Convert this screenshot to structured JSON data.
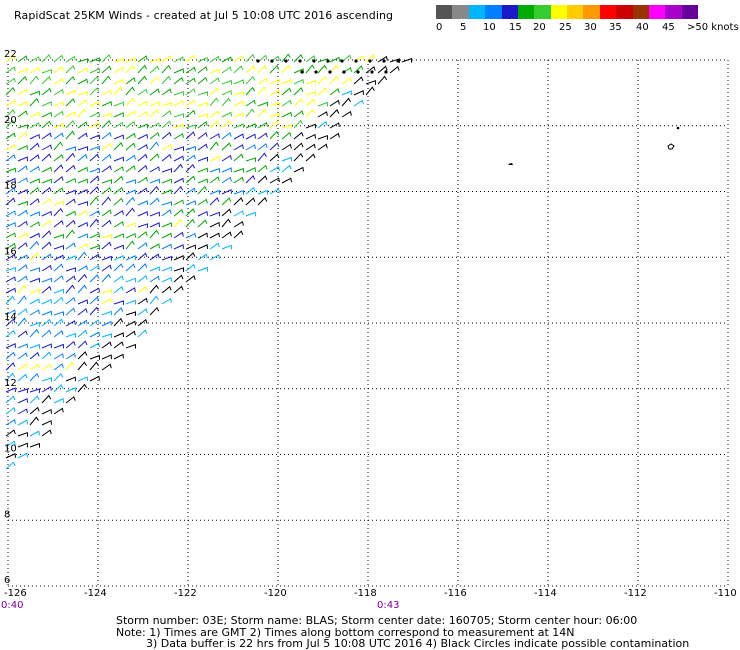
{
  "title": "RapidScat 25KM Winds - created at Jul  5 10:08 UTC 2016 ascending",
  "legend": {
    "colors": [
      "#555555",
      "#888888",
      "#00b4ff",
      "#0080ff",
      "#1a1acc",
      "#00aa00",
      "#33cc33",
      "#ffff00",
      "#ffcc00",
      "#ff9900",
      "#ff0000",
      "#cc0000",
      "#993300",
      "#ff00ff",
      "#aa00cc",
      "#660099"
    ],
    "labels": [
      "0",
      "5",
      "10",
      "15",
      "20",
      "25",
      "30",
      "35",
      "40",
      "45",
      ">50 knots"
    ]
  },
  "map": {
    "lat_labels": [
      "22",
      "20",
      "18",
      "16",
      "14",
      "12",
      "10",
      "8",
      "6"
    ],
    "lon_labels": [
      "-126",
      "-124",
      "-122",
      "-120",
      "-118",
      "-116",
      "-114",
      "-112",
      "-110"
    ],
    "time_left": "0:40",
    "time_mid": "0:43",
    "storm_marker_colors": [
      "#000000"
    ]
  },
  "footer": {
    "line1": "Storm number: 03E;  Storm name: BLAS;  Storm center date: 160705;  Storm center hour: 06:00",
    "line2": "Note: 1) Times are GMT  2) Times along bottom correspond to measurement at 14N",
    "line3": "3) Data buffer is 22 hrs from Jul  5 10:08 UTC 2016  4) Black Circles indicate possible contamination"
  }
}
